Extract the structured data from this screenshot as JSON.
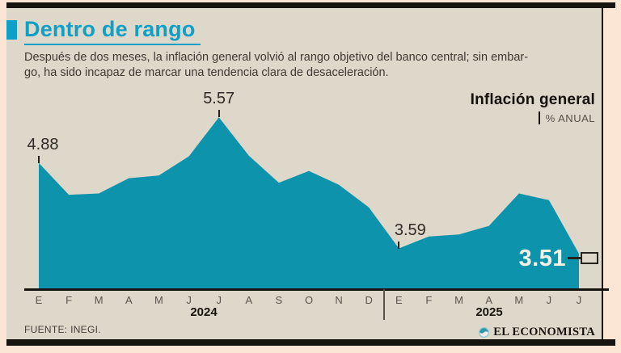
{
  "header": {
    "title": "Dentro de rango",
    "subtitle_lines": [
      "Después de dos meses, la inflación general volvió al rango objetivo del banco central; sin embar-",
      "go, ha sido incapaz de marcar una tendencia clara de desaceleración."
    ]
  },
  "legend": {
    "series_label": "Inflación general",
    "unit_label": "% ANUAL"
  },
  "chart_data": {
    "type": "area",
    "title": "Inflación general",
    "ylabel": "% anual",
    "x_tick_labels": [
      "E",
      "F",
      "M",
      "A",
      "M",
      "J",
      "J",
      "A",
      "S",
      "O",
      "N",
      "D",
      "E",
      "F",
      "M",
      "A",
      "M",
      "J",
      "J"
    ],
    "year_labels": [
      "2024",
      "2025"
    ],
    "series": [
      {
        "name": "Inflación general",
        "values": [
          4.88,
          4.4,
          4.42,
          4.65,
          4.69,
          4.98,
          5.57,
          4.99,
          4.58,
          4.76,
          4.55,
          4.21,
          3.59,
          3.77,
          3.8,
          3.93,
          4.42,
          4.32,
          3.51
        ]
      }
    ],
    "ylim": [
      2.95,
      6.2
    ],
    "grid": false,
    "area_color": "#0e93ac",
    "annotations": [
      {
        "x_index": 0,
        "value": 4.88,
        "label": "4.88"
      },
      {
        "x_index": 6,
        "value": 5.57,
        "label": "5.57"
      },
      {
        "x_index": 12,
        "value": 3.59,
        "label": "3.59"
      },
      {
        "x_index": 18,
        "value": 3.51,
        "label": "3.51",
        "emphasis": true
      }
    ]
  },
  "footer": {
    "source": "FUENTE: INEGI.",
    "brand": "EL ECONOMISTA"
  },
  "colors": {
    "accent_teal": "#0f9fc7",
    "area_teal": "#0e93ac",
    "card_bg": "#ded8ca",
    "page_bg": "#fbe5d4",
    "bar_black": "#17140f",
    "highlight_value_text": "#f6f1e5"
  }
}
